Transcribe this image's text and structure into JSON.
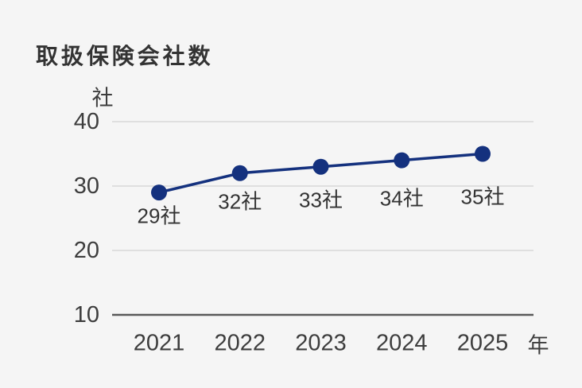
{
  "chart_data": {
    "type": "line",
    "title": "取扱保険会社数",
    "categories": [
      "2021",
      "2022",
      "2023",
      "2024",
      "2025"
    ],
    "values": [
      29,
      32,
      33,
      34,
      35
    ],
    "point_labels": [
      "29社",
      "32社",
      "33社",
      "34社",
      "35社"
    ],
    "xlabel": "年",
    "ylabel": "社",
    "y_ticks": [
      40,
      30,
      20,
      10
    ],
    "ylim": [
      10,
      40
    ],
    "grid": true,
    "legend": "none",
    "colors": {
      "line": "#14317e",
      "marker": "#14317e",
      "grid": "#d8d8d8",
      "axis": "#595959",
      "title_text": "#333333",
      "tick_text": "#3d3d3d",
      "label_text": "#333333",
      "background": "#f5f5f5"
    }
  }
}
